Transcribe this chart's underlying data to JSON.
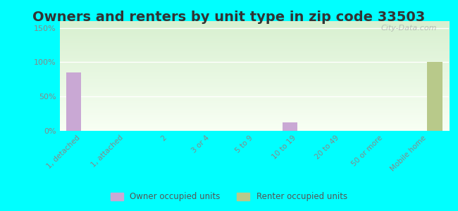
{
  "title": "Owners and renters by unit type in zip code 33503",
  "categories": [
    "1, detached",
    "1, attached",
    "2",
    "3 or 4",
    "5 to 9",
    "10 to 19",
    "20 to 49",
    "50 or more",
    "Mobile home"
  ],
  "owner_values": [
    85,
    0,
    0,
    0,
    0,
    12,
    0,
    0,
    0
  ],
  "renter_values": [
    0,
    0,
    0,
    0,
    0,
    0,
    0,
    0,
    100
  ],
  "owner_color": "#c9a8d4",
  "renter_color": "#b8c98a",
  "background_outer": "#00ffff",
  "background_inner_top": "#e8f5e0",
  "background_inner_bottom": "#f5fff0",
  "yticks": [
    0,
    50,
    100,
    150
  ],
  "ytick_labels": [
    "0%",
    "50%",
    "100%",
    "150%"
  ],
  "ylim": [
    0,
    160
  ],
  "title_fontsize": 14,
  "legend_owner": "Owner occupied units",
  "legend_renter": "Renter occupied units",
  "bar_width": 0.35,
  "watermark": "City-Data.com"
}
